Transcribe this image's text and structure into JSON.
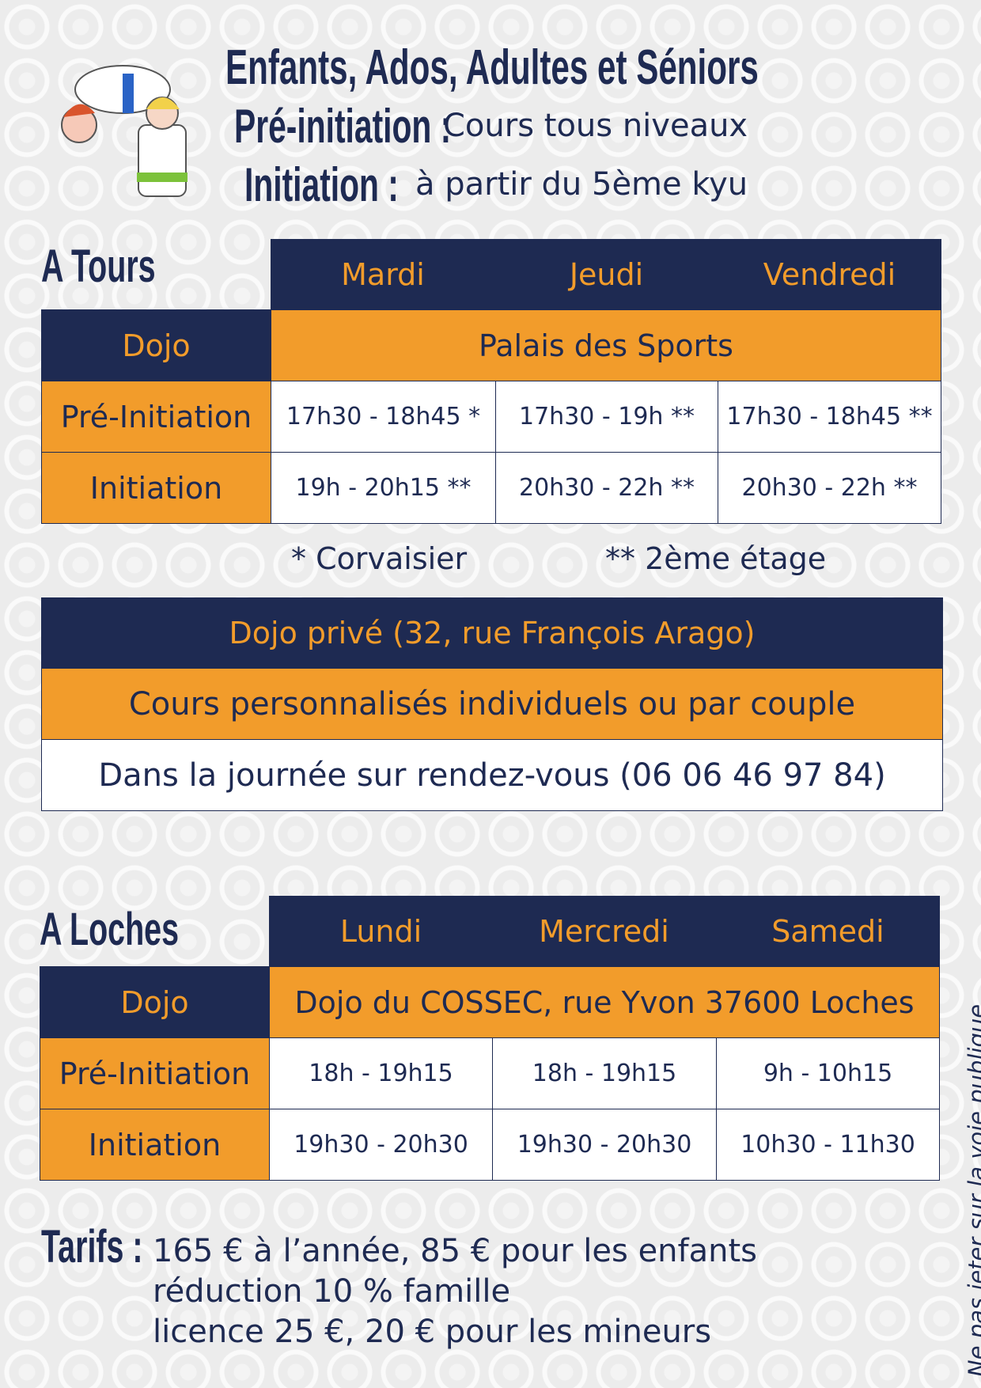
{
  "header": {
    "title": "Enfants, Ados, Adultes et Séniors",
    "pre_label": "Pré-initiation :",
    "pre_text": "Cours tous niveaux",
    "init_label": "Initiation :",
    "init_text": "à partir du 5ème kyu"
  },
  "tours": {
    "heading": "A Tours",
    "days": [
      "Mardi",
      "Jeudi",
      "Vendredi"
    ],
    "dojo_label": "Dojo",
    "dojo_value": "Palais des Sports",
    "rows": [
      {
        "label": "Pré-Initiation",
        "times": [
          "17h30 - 18h45 *",
          "17h30 - 19h **",
          "17h30 - 18h45 **"
        ]
      },
      {
        "label": "Initiation",
        "times": [
          "19h - 20h15 **",
          "20h30 - 22h **",
          "20h30 - 22h **"
        ]
      }
    ],
    "notes": [
      "* Corvaisier",
      "** 2ème étage"
    ]
  },
  "prive": {
    "title": "Dojo privé (32, rue François Arago)",
    "subtitle": "Cours personnalisés individuels ou par couple",
    "info": "Dans la journée sur rendez-vous (06 06 46 97 84)"
  },
  "loches": {
    "heading": "A Loches",
    "days": [
      "Lundi",
      "Mercredi",
      "Samedi"
    ],
    "dojo_label": "Dojo",
    "dojo_value": "Dojo du COSSEC, rue Yvon 37600 Loches",
    "rows": [
      {
        "label": "Pré-Initiation",
        "times": [
          "18h - 19h15",
          "18h - 19h15",
          "9h - 10h15"
        ]
      },
      {
        "label": "Initiation",
        "times": [
          "19h30 - 20h30",
          "19h30 - 20h30",
          "10h30 - 11h30"
        ]
      }
    ]
  },
  "tarifs": {
    "label": "Tarifs :",
    "lines": [
      "165 € à l’année, 85 € pour les enfants",
      "réduction 10 % famille",
      "licence 25 €, 20 € pour les mineurs"
    ]
  },
  "side_note": "Ne pas jeter sur la voie publique.",
  "colors": {
    "navy": "#1e2a52",
    "orange": "#f29c2b"
  },
  "illustration": "judo-kids-illustration"
}
